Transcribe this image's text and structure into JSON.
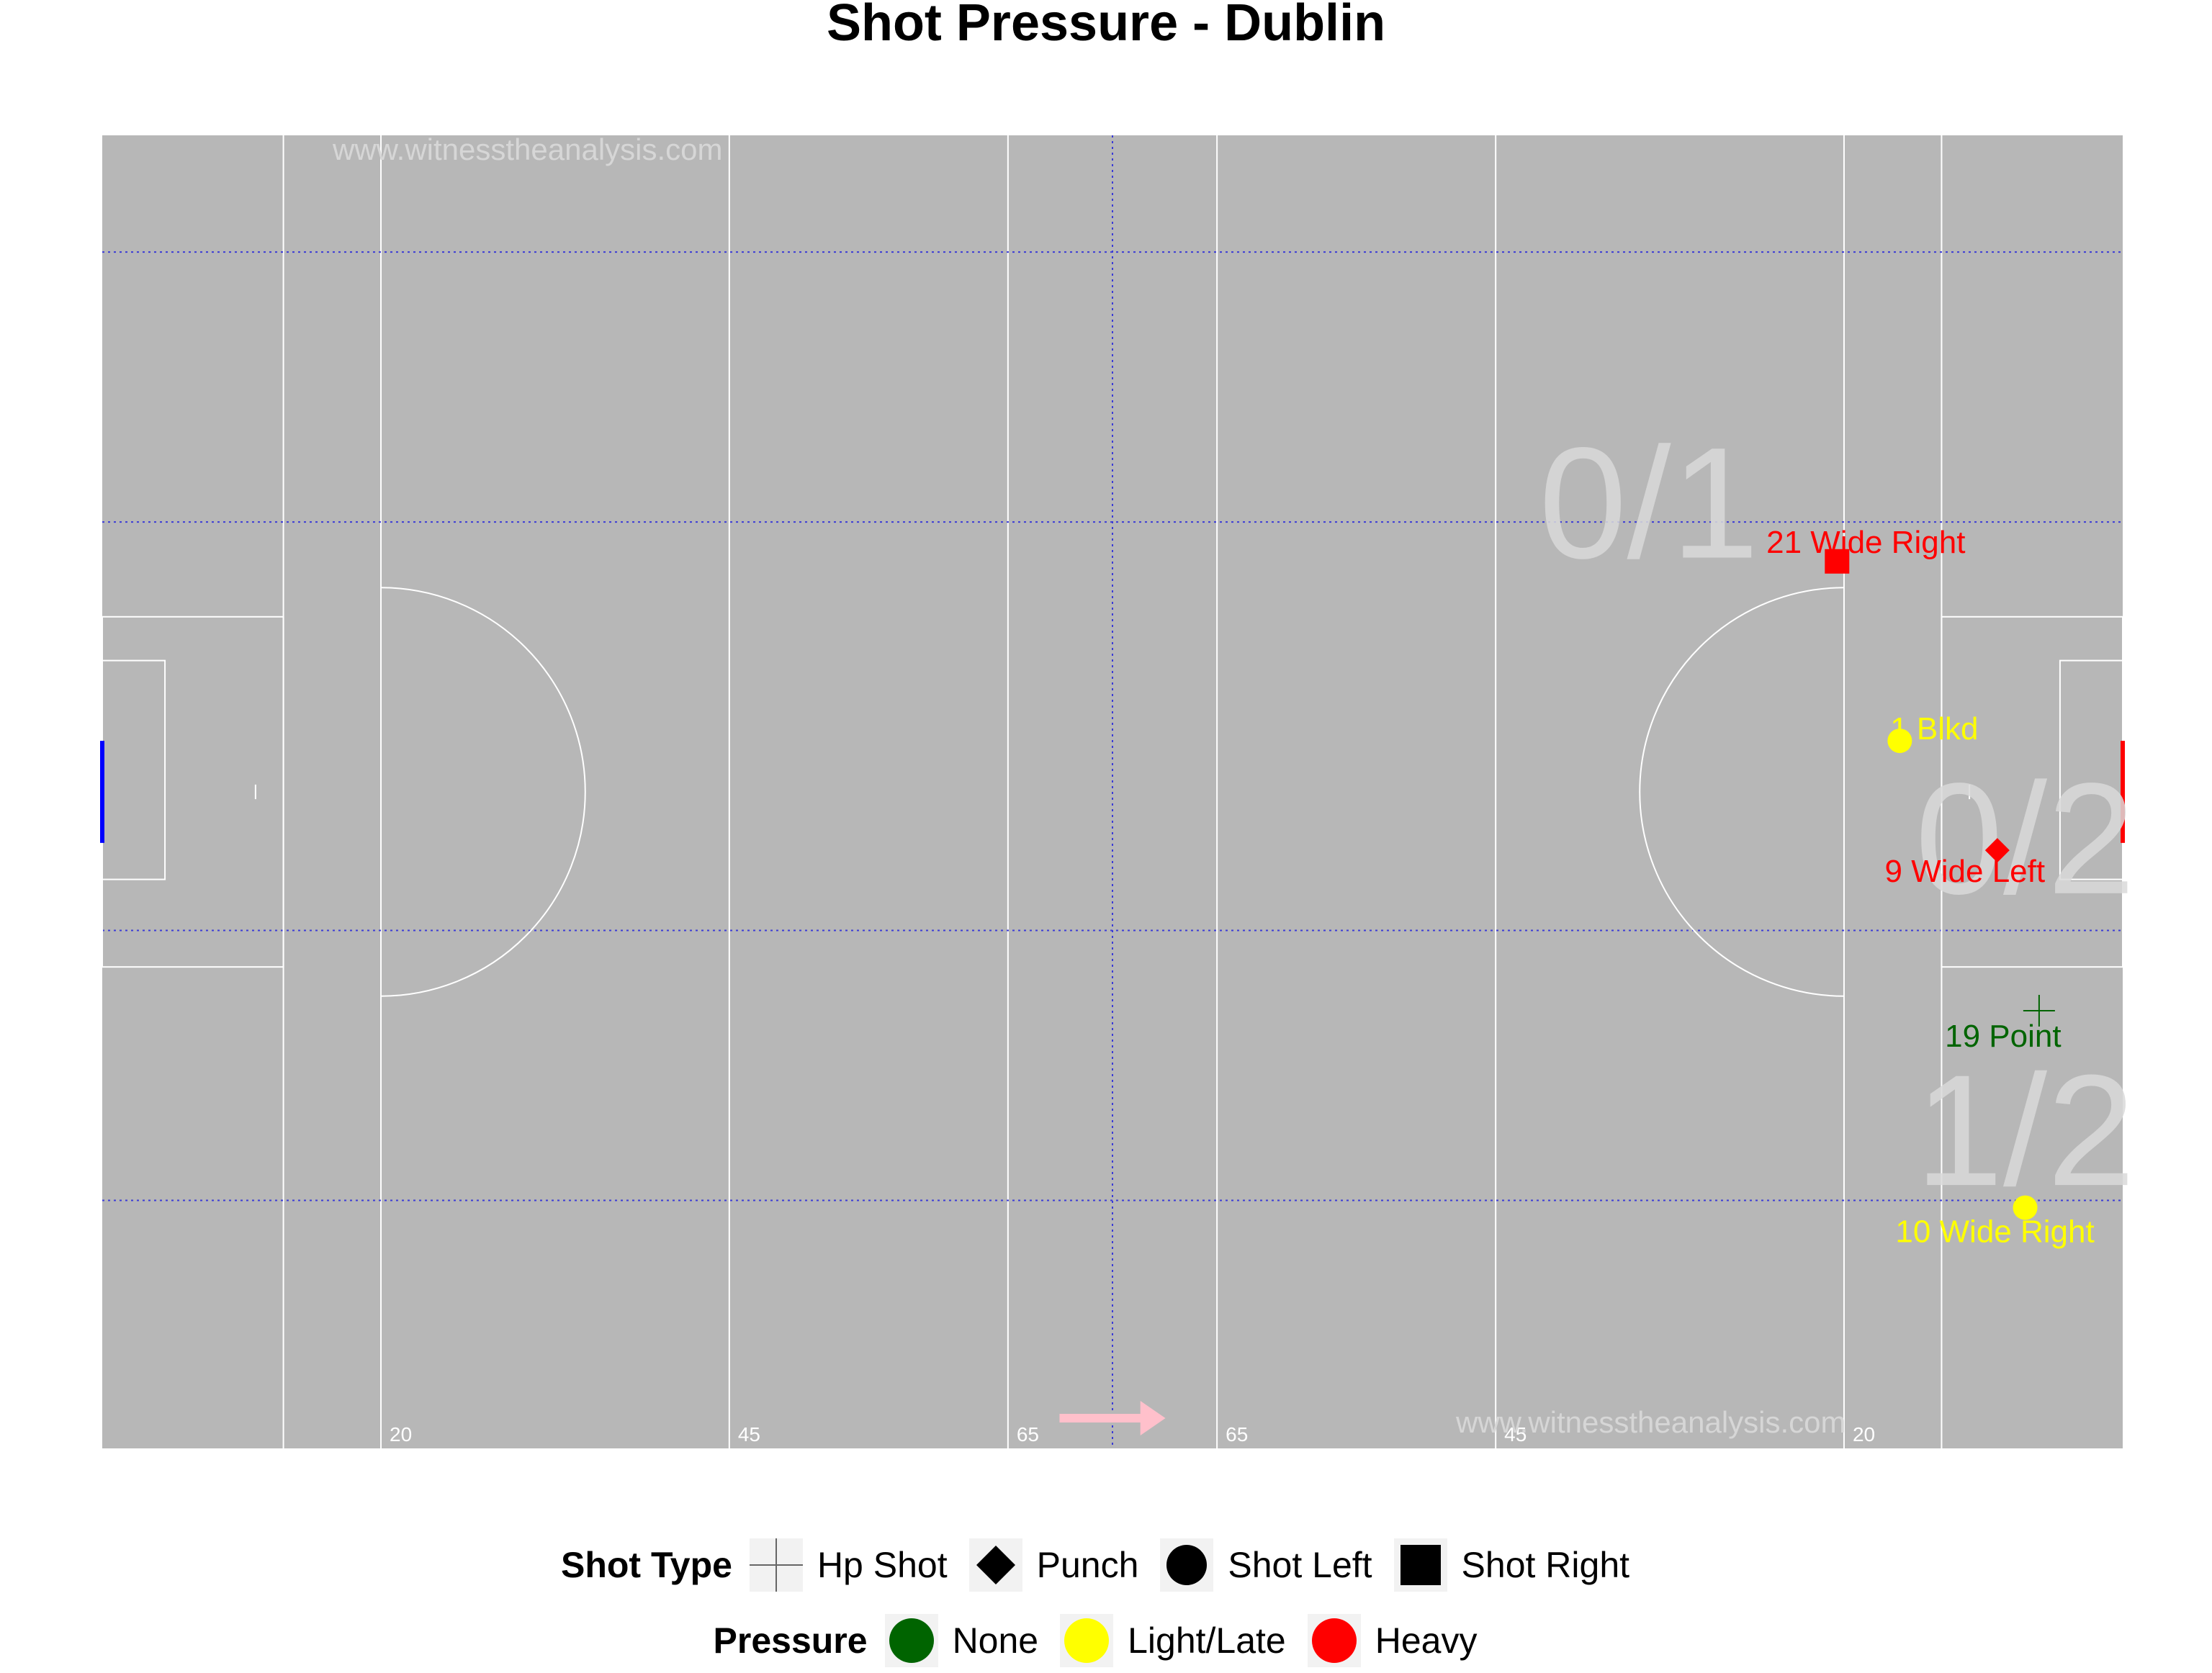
{
  "title": "Shot Pressure - Dublin",
  "watermark": "www.witnesstheanalysis.com",
  "colors": {
    "pitch": "#b7b7b7",
    "lines": "#ffffff",
    "zone_lines": "#3b3bd6",
    "none": "#006400",
    "light": "#ffff00",
    "heavy": "#ff0000",
    "left_goal": "#0000ff",
    "right_goal": "#ff0000",
    "arrow": "#ffc0cb",
    "zone_text": "#d9d9d9"
  },
  "pitch_marks": [
    "20",
    "45",
    "65",
    "65",
    "45",
    "20"
  ],
  "chart_data": {
    "type": "scatter",
    "title": "Shot Pressure - Dublin",
    "xlim": [
      0,
      145
    ],
    "ylim": [
      0,
      90
    ],
    "points": [
      {
        "label": "21 Wide Right",
        "x": 124.5,
        "y": 60.8,
        "shot_type": "Shot Right",
        "pressure": "Heavy"
      },
      {
        "label": "1 Blkd",
        "x": 129.0,
        "y": 48.5,
        "shot_type": "Shot Left",
        "pressure": "Light/Late"
      },
      {
        "label": "9 Wide Left",
        "x": 136.0,
        "y": 41.0,
        "shot_type": "Punch",
        "pressure": "Heavy"
      },
      {
        "label": "19 Point",
        "x": 139.0,
        "y": 30.0,
        "shot_type": "Hp Shot",
        "pressure": "None"
      },
      {
        "label": "10 Wide Right",
        "x": 138.0,
        "y": 16.5,
        "shot_type": "Shot Left",
        "pressure": "Light/Late"
      }
    ],
    "zone_annotations": [
      {
        "text": "0/1",
        "x": 111,
        "y": 65
      },
      {
        "text": "0/2",
        "x": 138,
        "y": 42
      },
      {
        "text": "1/2",
        "x": 138,
        "y": 22
      }
    ],
    "legend": {
      "shot_type": {
        "title": "Shot Type",
        "items": [
          "Hp Shot",
          "Punch",
          "Shot Left",
          "Shot Right"
        ]
      },
      "pressure": {
        "title": "Pressure",
        "items": [
          "None",
          "Light/Late",
          "Heavy"
        ]
      }
    },
    "legend_position": "bottom"
  }
}
